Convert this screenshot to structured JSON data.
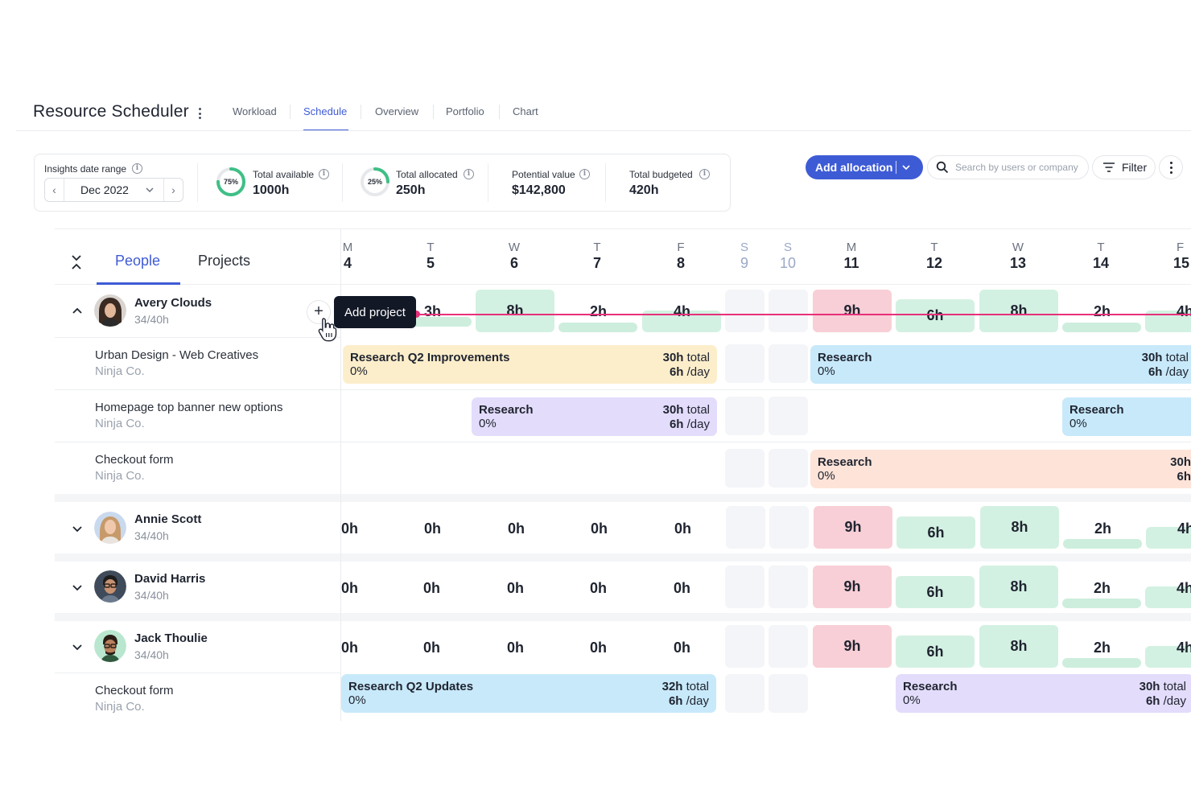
{
  "app": {
    "title": "Resource Scheduler"
  },
  "nav": {
    "tabs": [
      "Workload",
      "Schedule",
      "Overview",
      "Portfolio",
      "Chart"
    ],
    "active": "Schedule"
  },
  "insights": {
    "date_range_label": "Insights date range",
    "date_value": "Dec 2022",
    "total_available": {
      "label": "Total available",
      "value": "1000h",
      "percent": "75%",
      "fraction": 0.75
    },
    "total_allocated": {
      "label": "Total allocated",
      "value": "250h",
      "percent": "25%",
      "fraction": 0.25
    },
    "potential_value": {
      "label": "Potential value",
      "value": "$142,800"
    },
    "total_budgeted": {
      "label": "Total budgeted",
      "value": "420h"
    }
  },
  "toolbar": {
    "add_allocation": "Add allocation",
    "search_placeholder": "Search by users or company",
    "filter": "Filter"
  },
  "panel_tabs": {
    "people": "People",
    "projects": "Projects"
  },
  "days": [
    {
      "letter": "M",
      "num": "4"
    },
    {
      "letter": "T",
      "num": "5"
    },
    {
      "letter": "W",
      "num": "6"
    },
    {
      "letter": "T",
      "num": "7"
    },
    {
      "letter": "F",
      "num": "8"
    },
    {
      "letter": "S",
      "num": "9"
    },
    {
      "letter": "S",
      "num": "10"
    },
    {
      "letter": "M",
      "num": "11"
    },
    {
      "letter": "T",
      "num": "12"
    },
    {
      "letter": "W",
      "num": "13"
    },
    {
      "letter": "T",
      "num": "14"
    },
    {
      "letter": "F",
      "num": "15"
    }
  ],
  "people": [
    {
      "name": "Avery Clouds",
      "hours": "34/40h",
      "week1": [
        "",
        "3h",
        "8h",
        "2h",
        "4h"
      ],
      "week2": [
        "9h",
        "6h",
        "8h",
        "2h",
        "4h"
      ],
      "projects": [
        {
          "name": "Urban Design - Web Creatives",
          "company": "Ninja Co."
        },
        {
          "name": "Homepage top banner new options",
          "company": "Ninja Co."
        },
        {
          "name": "Checkout form",
          "company": "Ninja Co."
        }
      ]
    },
    {
      "name": "Annie Scott",
      "hours": "34/40h",
      "week1": [
        "0h",
        "0h",
        "0h",
        "0h",
        "0h"
      ],
      "week2": [
        "9h",
        "6h",
        "8h",
        "2h",
        "4h"
      ]
    },
    {
      "name": "David Harris",
      "hours": "34/40h",
      "week1": [
        "0h",
        "0h",
        "0h",
        "0h",
        "0h"
      ],
      "week2": [
        "9h",
        "6h",
        "8h",
        "2h",
        "4h"
      ]
    },
    {
      "name": "Jack Thoulie",
      "hours": "34/40h",
      "week1": [
        "0h",
        "0h",
        "0h",
        "0h",
        "0h"
      ],
      "week2": [
        "9h",
        "6h",
        "8h",
        "2h",
        "4h"
      ],
      "projects": [
        {
          "name": "Checkout form",
          "company": "Ninja Co."
        }
      ]
    }
  ],
  "allocations": {
    "a1": {
      "title": "Research Q2 Improvements",
      "progress": "0%",
      "total_num": "30h",
      "total_word": "total",
      "day_num": "6h",
      "day_word": "/day"
    },
    "a2": {
      "title": "Research",
      "progress": "0%",
      "total_num": "30h",
      "total_word": "total",
      "day_num": "6h",
      "day_word": "/day"
    },
    "a3": {
      "title": "Research",
      "progress": "0%",
      "total_num": "30h",
      "total_word": "total",
      "day_num": "6h",
      "day_word": "/day"
    },
    "a4": {
      "title": "Research",
      "progress": "0%"
    },
    "a5": {
      "title": "Research",
      "progress": "0%",
      "total_num": "30h",
      "day_num": "6h"
    },
    "a6": {
      "title": "Research Q2 Updates",
      "progress": "0%",
      "total_num": "32h",
      "total_word": "total",
      "day_num": "6h",
      "day_word": "/day"
    },
    "a7": {
      "title": "Research",
      "progress": "0%",
      "total_num": "30h",
      "total_word": "total",
      "day_num": "6h",
      "day_word": "/day"
    }
  },
  "tooltip": {
    "add_project": "Add project"
  },
  "colors": {
    "accent": "#3e5bd6",
    "today_line": "#e8307a",
    "over": "#f8cfd6",
    "ok": "#d3f1e2"
  }
}
